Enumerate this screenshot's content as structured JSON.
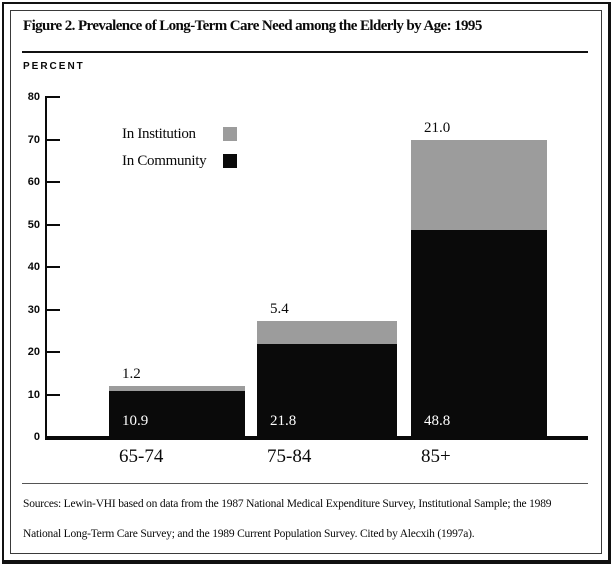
{
  "figure": {
    "title": "Figure 2. Prevalence of Long-Term Care Need among the Elderly by Age: 1995",
    "axis_unit_label": "PERCENT",
    "source_note_lines": [
      "Sources: Lewin-VHI based on data from the 1987 National Medical Expenditure Survey, Institutional Sample; the 1989",
      "National Long-Term Care Survey; and the 1989 Current Population Survey. Cited by Alecxih (1997a)."
    ]
  },
  "legend": {
    "items": [
      {
        "label": "In Institution",
        "color": "#9c9c9c"
      },
      {
        "label": "In Community",
        "color": "#0a0a0a"
      }
    ]
  },
  "chart_data": {
    "type": "bar",
    "stacked": true,
    "title": "Figure 2. Prevalence of Long-Term Care Need among the Elderly by Age: 1995",
    "xlabel": "",
    "ylabel": "PERCENT",
    "categories": [
      "65-74",
      "75-84",
      "85+"
    ],
    "series": [
      {
        "name": "In Community",
        "color": "#0a0a0a",
        "values": [
          10.9,
          21.8,
          48.8
        ],
        "value_labels": [
          "10.9",
          "21.8",
          "48.8"
        ],
        "label_position": "inside-bottom",
        "label_color": "#ffffff"
      },
      {
        "name": "In Institution",
        "color": "#9c9c9c",
        "values": [
          1.2,
          5.4,
          21.0
        ],
        "value_labels": [
          "1.2",
          "5.4",
          "21.0"
        ],
        "label_position": "above-bar",
        "label_color": "#0a0a0a"
      }
    ],
    "ylim": [
      0,
      80
    ],
    "yticks": [
      "0",
      "10",
      "20",
      "30",
      "40",
      "50",
      "60",
      "70",
      "80"
    ],
    "ytick_interval": 10,
    "grid": false,
    "legend_position": "top-left-inside"
  }
}
